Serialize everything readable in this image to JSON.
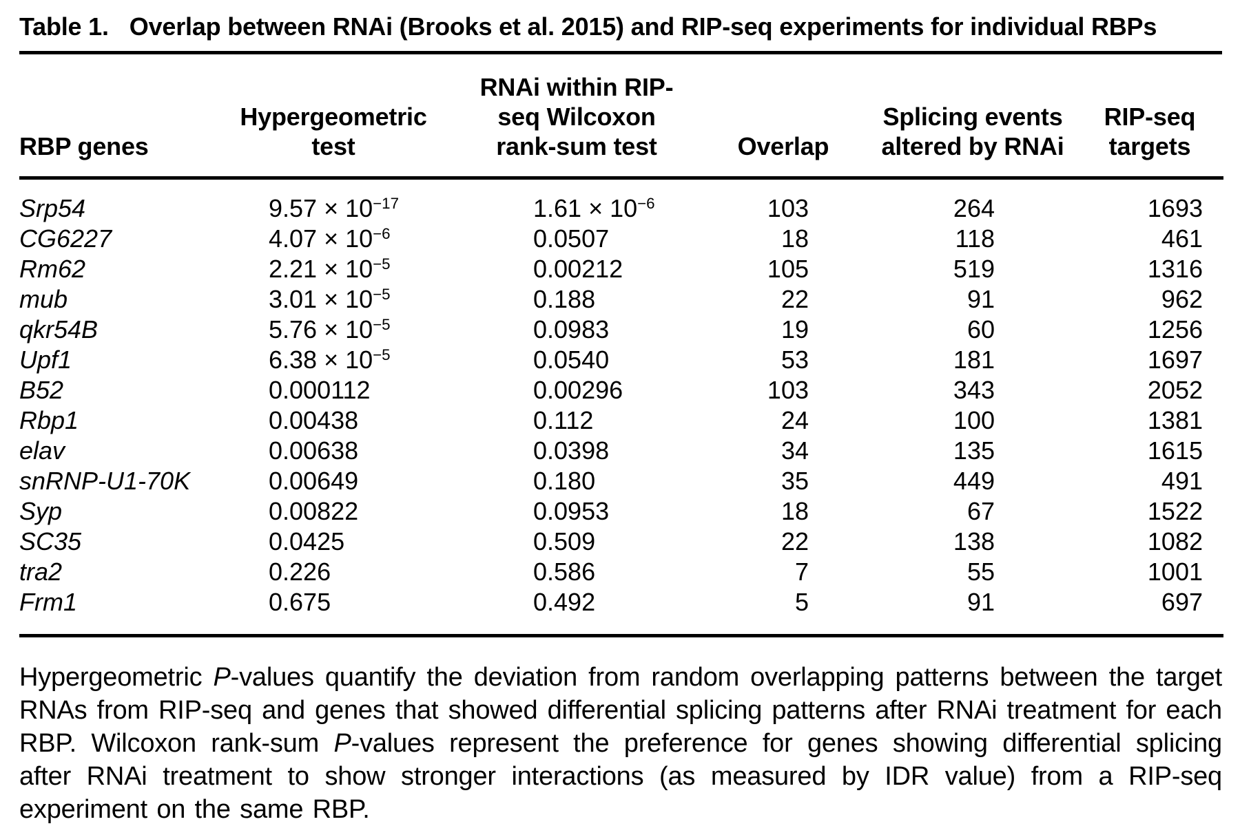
{
  "title": {
    "label": "Table 1.",
    "text": "Overlap between RNAi (Brooks et al. 2015) and RIP-seq experiments for individual RBPs"
  },
  "table": {
    "columns": [
      {
        "key": "gene",
        "lines": [
          "RBP genes"
        ]
      },
      {
        "key": "hypergeometric",
        "lines": [
          "Hypergeometric",
          "test"
        ]
      },
      {
        "key": "wilcoxon",
        "lines": [
          "RNAi within RIP-",
          "seq Wilcoxon",
          "rank-sum test"
        ]
      },
      {
        "key": "overlap",
        "lines": [
          "Overlap"
        ]
      },
      {
        "key": "splicing",
        "lines": [
          "Splicing events",
          "altered by RNAi"
        ]
      },
      {
        "key": "targets",
        "lines": [
          "RIP-seq",
          "targets"
        ]
      }
    ],
    "rows": [
      [
        "Srp54",
        "9.57 × 10^{−17}",
        "1.61 × 10^{−6}",
        "103",
        "264",
        "1693"
      ],
      [
        "CG6227",
        "4.07 × 10^{−6}",
        "0.0507",
        "18",
        "118",
        "461"
      ],
      [
        "Rm62",
        "2.21 × 10^{−5}",
        "0.00212",
        "105",
        "519",
        "1316"
      ],
      [
        "mub",
        "3.01 × 10^{−5}",
        "0.188",
        "22",
        "91",
        "962"
      ],
      [
        "qkr54B",
        "5.76 × 10^{−5}",
        "0.0983",
        "19",
        "60",
        "1256"
      ],
      [
        "Upf1",
        "6.38 × 10^{−5}",
        "0.0540",
        "53",
        "181",
        "1697"
      ],
      [
        "B52",
        "0.000112",
        "0.00296",
        "103",
        "343",
        "2052"
      ],
      [
        "Rbp1",
        "0.00438",
        "0.112",
        "24",
        "100",
        "1381"
      ],
      [
        "elav",
        "0.00638",
        "0.0398",
        "34",
        "135",
        "1615"
      ],
      [
        "snRNP-U1-70K",
        "0.00649",
        "0.180",
        "35",
        "449",
        "491"
      ],
      [
        "Syp",
        "0.00822",
        "0.0953",
        "18",
        "67",
        "1522"
      ],
      [
        "SC35",
        "0.0425",
        "0.509",
        "22",
        "138",
        "1082"
      ],
      [
        "tra2",
        "0.226",
        "0.586",
        "7",
        "55",
        "1001"
      ],
      [
        "Frm1",
        "0.675",
        "0.492",
        "5",
        "91",
        "697"
      ]
    ]
  },
  "footnote": "Hypergeometric *P*-values quantify the deviation from random overlapping patterns between the target RNAs from RIP-seq and genes that showed differential splicing patterns after RNAi treatment for each RBP. Wilcoxon rank-sum *P*-values represent the preference for genes showing differential splicing after RNAi treatment to show stronger interactions (as measured by IDR value) from a RIP-seq experiment on the same RBP.",
  "colors": {
    "text": "#000000",
    "background": "#ffffff",
    "rule": "#000000"
  }
}
